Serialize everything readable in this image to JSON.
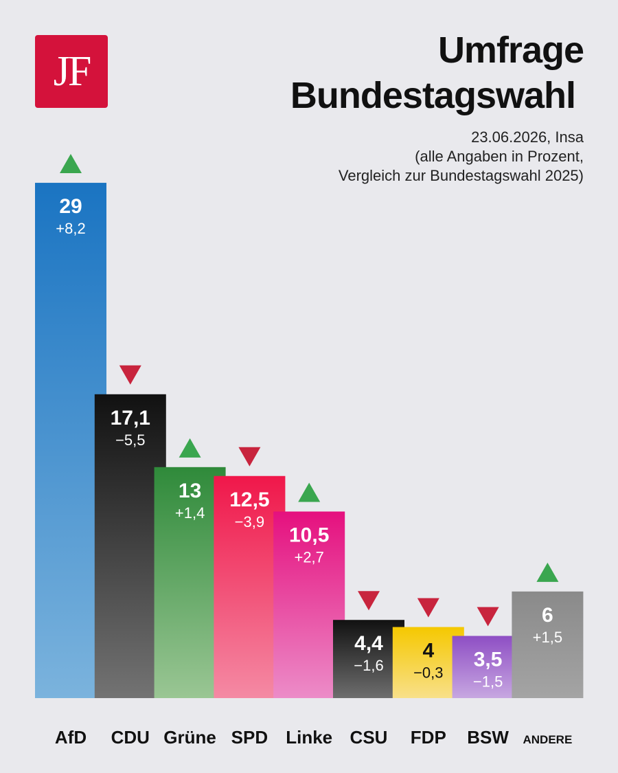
{
  "logo": {
    "text": "JF"
  },
  "header": {
    "title_line1": "Umfrage",
    "title_line2": "Bundestagswahl",
    "subtitle_line1": "23.06.2026, Insa",
    "subtitle_line2": "(alle Angaben in Prozent,",
    "subtitle_line3": "Vergleich zur Bundestagswahl 2025)"
  },
  "chart_data": {
    "type": "bar",
    "categories": [
      "AfD",
      "CDU",
      "Grüne",
      "SPD",
      "Linke",
      "CSU",
      "FDP",
      "BSW",
      "ANDERE"
    ],
    "values": [
      29,
      17.1,
      13,
      12.5,
      10.5,
      4.4,
      4,
      3.5,
      6
    ],
    "value_labels": [
      "29",
      "17,1",
      "13",
      "12,5",
      "10,5",
      "4,4",
      "4",
      "3,5",
      "6"
    ],
    "change_labels": [
      "+8,2",
      "−5,5",
      "+1,4",
      "−3,9",
      "+2,7",
      "−1,6",
      "−0,3",
      "−1,5",
      "+1,5"
    ],
    "trend": [
      "up",
      "down",
      "up",
      "down",
      "up",
      "down",
      "down",
      "down",
      "up"
    ],
    "colors": [
      "#1a74c2",
      "#111111",
      "#2f8a3a",
      "#f0174a",
      "#e5107e",
      "#111111",
      "#f5c800",
      "#8e4ec4",
      "#8a8a8a"
    ],
    "colors_bottom": [
      "#7bb3dd",
      "#737373",
      "#9ac694",
      "#f48aa4",
      "#ec8cc8",
      "#6e6e6e",
      "#f8e08a",
      "#c7a7e1",
      "#a4a4a4"
    ],
    "up_color": "#3aa64f",
    "down_color": "#c8243d",
    "ylim": [
      0,
      29
    ]
  }
}
